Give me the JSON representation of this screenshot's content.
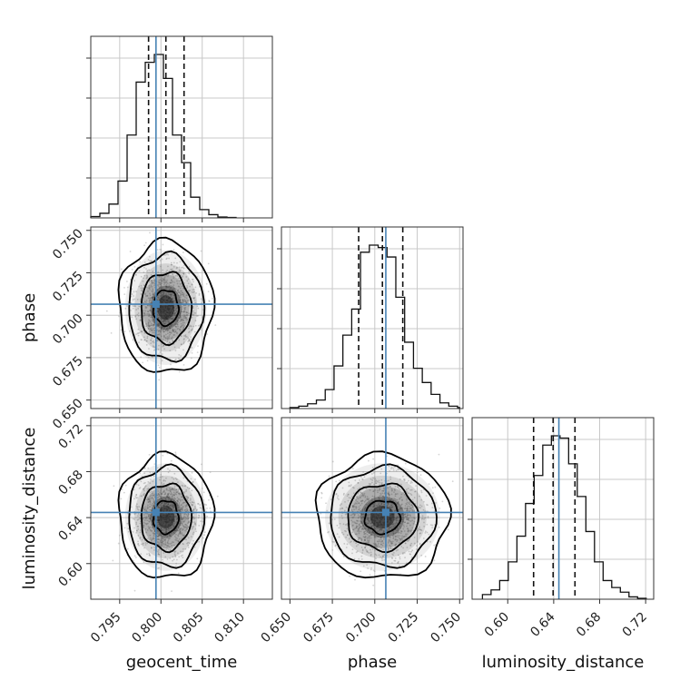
{
  "chart_data": {
    "type": "corner",
    "parameters": [
      {
        "name": "geocent_time",
        "label": "geocent_time",
        "range": [
          0.7915,
          0.8135
        ],
        "ticks": [
          "0.795",
          "0.800",
          "0.805",
          "0.810"
        ],
        "tick_values": [
          0.795,
          0.8,
          0.805,
          0.81
        ],
        "quantiles": [
          0.7985,
          0.8006,
          0.8028
        ],
        "truth": 0.7994
      },
      {
        "name": "phase",
        "label": "phase",
        "range": [
          0.645,
          0.752
        ],
        "ticks": [
          "0.650",
          "0.675",
          "0.700",
          "0.725",
          "0.750"
        ],
        "tick_values": [
          0.65,
          0.675,
          0.7,
          0.725,
          0.75
        ],
        "quantiles": [
          0.6905,
          0.7045,
          0.7165
        ],
        "truth": 0.7065
      },
      {
        "name": "luminosity_distance",
        "label": "luminosity_distance",
        "range": [
          0.569,
          0.727
        ],
        "ticks": [
          "0.60",
          "0.64",
          "0.68",
          "0.72"
        ],
        "tick_values": [
          0.6,
          0.64,
          0.68,
          0.72
        ],
        "quantiles": [
          0.6225,
          0.6395,
          0.6585
        ],
        "truth": 0.6445
      }
    ],
    "histograms": [
      {
        "param": "geocent_time",
        "bin_edges": [
          0.7915,
          0.7926,
          0.7937,
          0.7948,
          0.7959,
          0.797,
          0.7981,
          0.7992,
          0.8003,
          0.8014,
          0.8025,
          0.8036,
          0.8047,
          0.8058,
          0.8069,
          0.808,
          0.8091
        ],
        "counts": [
          3,
          10,
          30,
          80,
          180,
          295,
          338,
          355,
          303,
          180,
          120,
          45,
          18,
          7,
          2,
          1
        ]
      },
      {
        "param": "phase",
        "bin_edges": [
          0.65,
          0.6552,
          0.6604,
          0.6656,
          0.6708,
          0.676,
          0.6812,
          0.6864,
          0.6916,
          0.6968,
          0.702,
          0.7072,
          0.7124,
          0.7176,
          0.7228,
          0.728,
          0.7332,
          0.7384,
          0.7436,
          0.7488,
          0.75
        ],
        "counts": [
          2,
          5,
          10,
          18,
          40,
          90,
          155,
          210,
          330,
          345,
          340,
          320,
          235,
          140,
          85,
          55,
          30,
          12,
          5,
          2
        ]
      },
      {
        "param": "luminosity_distance",
        "bin_edges": [
          0.578,
          0.5855,
          0.593,
          0.6005,
          0.608,
          0.6155,
          0.623,
          0.6305,
          0.638,
          0.6455,
          0.653,
          0.6605,
          0.668,
          0.6755,
          0.683,
          0.6905,
          0.698,
          0.7055,
          0.713,
          0.7205
        ],
        "counts": [
          10,
          20,
          40,
          80,
          135,
          205,
          265,
          330,
          350,
          345,
          290,
          220,
          145,
          80,
          40,
          25,
          15,
          5,
          2
        ]
      }
    ],
    "pairs": [
      {
        "x": "geocent_time",
        "y": "phase",
        "center": [
          0.8006,
          0.7045
        ],
        "sigma": [
          0.0019,
          0.013
        ]
      },
      {
        "x": "geocent_time",
        "y": "luminosity_distance",
        "center": [
          0.8006,
          0.6405
        ],
        "sigma": [
          0.0019,
          0.018
        ]
      },
      {
        "x": "phase",
        "y": "luminosity_distance",
        "center": [
          0.7045,
          0.6405
        ],
        "sigma": [
          0.013,
          0.018
        ]
      }
    ],
    "grid": true,
    "colors": {
      "truth": "#4682b4",
      "hist": "#111111",
      "quantile": "#111111",
      "scatter": "#888888"
    }
  }
}
